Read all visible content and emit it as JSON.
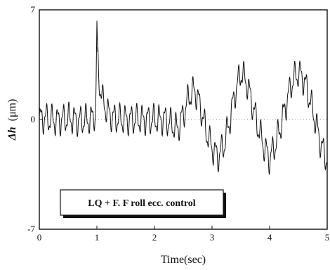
{
  "chart_data": {
    "type": "line",
    "xlabel": "Time(sec)",
    "ylabel_symbol": "Δh",
    "ylabel_unit": "(μm)",
    "xlim": [
      0,
      5
    ],
    "ylim": [
      -7,
      7
    ],
    "x_ticks": [
      0,
      1,
      2,
      3,
      4,
      5
    ],
    "y_ticks": [
      -7,
      0,
      7
    ],
    "zero_reference_line": true,
    "grid": false,
    "legend": {
      "text": "LQ + F. F roll ecc. control",
      "placement": "bottom-left"
    },
    "series": [
      {
        "x": [
          0,
          0.1,
          0.2,
          0.3,
          0.4,
          0.5,
          0.6,
          0.7,
          0.8,
          0.9,
          0.98,
          1.0,
          1.02,
          1.05,
          1.1,
          1.2,
          1.3,
          1.4,
          1.5,
          1.6,
          1.7,
          1.8,
          1.9,
          2.0,
          2.1,
          2.2,
          2.3,
          2.4,
          2.5,
          2.6,
          2.7,
          2.8,
          2.9,
          3.0,
          3.1,
          3.2,
          3.3,
          3.4,
          3.5,
          3.6,
          3.7,
          3.8,
          3.9,
          4.0,
          4.1,
          4.2,
          4.3,
          4.4,
          4.5,
          4.6,
          4.7,
          4.8,
          4.9,
          5.0
        ],
        "y": [
          0,
          0.1,
          0,
          -0.1,
          0,
          0.1,
          0,
          -0.1,
          0,
          0,
          0.5,
          6.3,
          3.5,
          2.2,
          1.2,
          0.4,
          0.1,
          0,
          0,
          0,
          0,
          0,
          0,
          0,
          0,
          0,
          -0.3,
          -0.6,
          0.3,
          1.5,
          1.9,
          0.8,
          -0.8,
          -1.8,
          -2.4,
          -1.7,
          -0.2,
          1.7,
          3.0,
          2.4,
          1.0,
          -0.5,
          -1.7,
          -2.5,
          -1.6,
          -0.3,
          1.2,
          2.5,
          3.0,
          2.5,
          1.3,
          -0.2,
          -1.7,
          -2.6
        ]
      }
    ]
  }
}
